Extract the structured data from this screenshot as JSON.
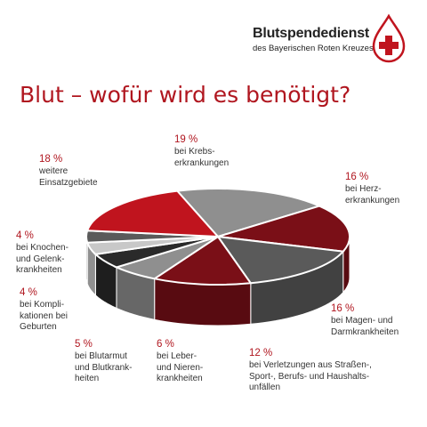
{
  "header": {
    "org_name": "Blutspendedienst",
    "org_sub": "des Bayerischen Roten Kreuzes",
    "logo_icon": "blood-drop-cross-icon"
  },
  "page_title": "Blut – wofür wird es benötigt?",
  "colors": {
    "accent": "#b0161f",
    "dark_red": "#7a0f17",
    "red": "#c0141e",
    "grey": "#8f8f8f",
    "dark_grey": "#5a5a5a",
    "black": "#2a2a2a",
    "light_grey": "#c8c8c8"
  },
  "chart_data": {
    "type": "pie",
    "title": "Blut – wofür wird es benötigt?",
    "slices": [
      {
        "pct_label": "19 %",
        "text": "bei Krebs-\nerkrankungen",
        "value": 19,
        "color": "grey"
      },
      {
        "pct_label": "16 %",
        "text": "bei Herz-\nerkrankungen",
        "value": 16,
        "color": "dark_red"
      },
      {
        "pct_label": "16 %",
        "text": "bei Magen- und\nDarmkrankheiten",
        "value": 16,
        "color": "dark_grey"
      },
      {
        "pct_label": "12 %",
        "text": "bei Verletzungen aus Straßen-,\nSport-, Berufs- und Haushalts-\nunfällen",
        "value": 12,
        "color": "dark_red"
      },
      {
        "pct_label": "6 %",
        "text": "bei Leber-\nund Nieren-\nkrankheiten",
        "value": 6,
        "color": "grey"
      },
      {
        "pct_label": "5 %",
        "text": "bei Blutarmut\nund Blutkrank-\nheiten",
        "value": 5,
        "color": "black"
      },
      {
        "pct_label": "4 %",
        "text": "bei Kompli-\nkationen bei\nGeburten",
        "value": 4,
        "color": "light_grey"
      },
      {
        "pct_label": "4 %",
        "text": "bei Knochen-\nund Gelenk-\nkrankheiten",
        "value": 4,
        "color": "dark_grey"
      },
      {
        "pct_label": "18 %",
        "text": "weitere\nEinsatzgebiete",
        "value": 18,
        "color": "red"
      }
    ]
  }
}
